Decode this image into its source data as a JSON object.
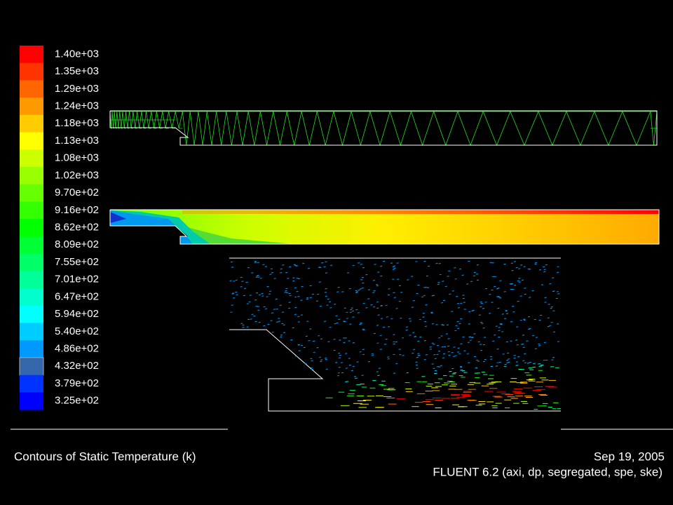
{
  "legend": {
    "labels": [
      "1.40e+03",
      "1.35e+03",
      "1.29e+03",
      "1.24e+03",
      "1.18e+03",
      "1.13e+03",
      "1.08e+03",
      "1.02e+03",
      "9.70e+02",
      "9.16e+02",
      "8.62e+02",
      "8.09e+02",
      "7.55e+02",
      "7.01e+02",
      "6.47e+02",
      "5.94e+02",
      "5.40e+02",
      "4.86e+02",
      "4.32e+02",
      "3.79e+02",
      "3.25e+02"
    ]
  },
  "footer": {
    "title": "Contours of Static Temperature (k)",
    "date": "Sep 19, 2005",
    "version": "FLUENT 6.2 (axi, dp, segregated, spe, ske)"
  }
}
